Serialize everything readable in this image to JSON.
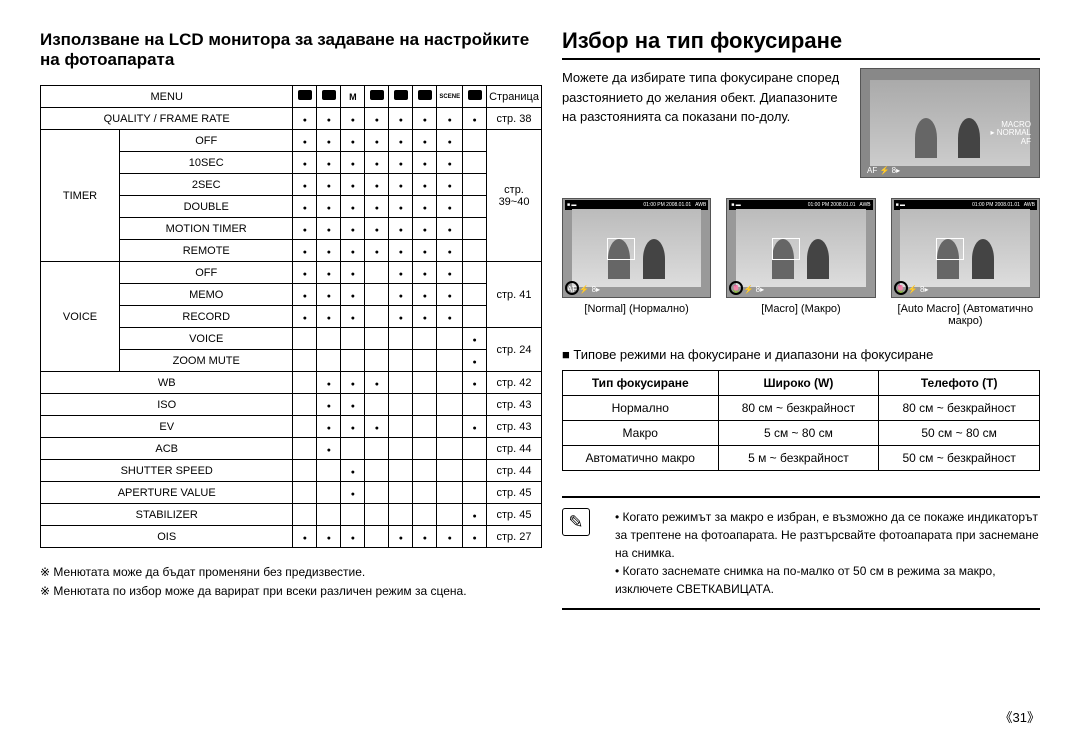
{
  "left": {
    "heading": "Използване на LCD монитора за задаване на настройките на фотоапарата",
    "table": {
      "header": [
        "MENU",
        "",
        "",
        "",
        "",
        "",
        "",
        "",
        "",
        "Страница"
      ],
      "mode_icons": [
        "◉",
        "◉",
        "M",
        "🎥",
        "◐",
        "☻",
        "SCENE",
        "☻"
      ],
      "rows": [
        {
          "group": "",
          "label": "QUALITY / FRAME RATE",
          "dots": [
            1,
            1,
            1,
            1,
            1,
            1,
            1,
            1
          ],
          "page": "стр. 38"
        },
        {
          "group": "TIMER",
          "label": "OFF",
          "dots": [
            1,
            1,
            1,
            1,
            1,
            1,
            1,
            0
          ],
          "page": ""
        },
        {
          "group": "TIMER",
          "label": "10SEC",
          "dots": [
            1,
            1,
            1,
            1,
            1,
            1,
            1,
            0
          ],
          "page": ""
        },
        {
          "group": "TIMER",
          "label": "2SEC",
          "dots": [
            1,
            1,
            1,
            1,
            1,
            1,
            1,
            0
          ],
          "page": "стр. 39~40"
        },
        {
          "group": "TIMER",
          "label": "DOUBLE",
          "dots": [
            1,
            1,
            1,
            1,
            1,
            1,
            1,
            0
          ],
          "page": ""
        },
        {
          "group": "TIMER",
          "label": "MOTION TIMER",
          "dots": [
            1,
            1,
            1,
            1,
            1,
            1,
            1,
            0
          ],
          "page": ""
        },
        {
          "group": "TIMER",
          "label": "REMOTE",
          "dots": [
            1,
            1,
            1,
            1,
            1,
            1,
            1,
            0
          ],
          "page": ""
        },
        {
          "group": "VOICE",
          "label": "OFF",
          "dots": [
            1,
            1,
            1,
            0,
            1,
            1,
            1,
            0
          ],
          "page": ""
        },
        {
          "group": "VOICE",
          "label": "MEMO",
          "dots": [
            1,
            1,
            1,
            0,
            1,
            1,
            1,
            0
          ],
          "page": "стр. 41"
        },
        {
          "group": "VOICE",
          "label": "RECORD",
          "dots": [
            1,
            1,
            1,
            0,
            1,
            1,
            1,
            0
          ],
          "page": ""
        },
        {
          "group": "VOICE",
          "label": "VOICE",
          "dots": [
            0,
            0,
            0,
            0,
            0,
            0,
            0,
            1
          ],
          "page": ""
        },
        {
          "group": "VOICE",
          "label": "ZOOM MUTE",
          "dots": [
            0,
            0,
            0,
            0,
            0,
            0,
            0,
            1
          ],
          "page": "стр. 24"
        },
        {
          "group": "",
          "label": "WB",
          "dots": [
            0,
            1,
            1,
            1,
            0,
            0,
            0,
            1
          ],
          "page": "стр. 42"
        },
        {
          "group": "",
          "label": "ISO",
          "dots": [
            0,
            1,
            1,
            0,
            0,
            0,
            0,
            0
          ],
          "page": "стр. 43"
        },
        {
          "group": "",
          "label": "EV",
          "dots": [
            0,
            1,
            1,
            1,
            0,
            0,
            0,
            1
          ],
          "page": "стр. 43"
        },
        {
          "group": "",
          "label": "ACB",
          "dots": [
            0,
            1,
            0,
            0,
            0,
            0,
            0,
            0
          ],
          "page": "стр. 44"
        },
        {
          "group": "",
          "label": "SHUTTER SPEED",
          "dots": [
            0,
            0,
            1,
            0,
            0,
            0,
            0,
            0
          ],
          "page": "стр. 44"
        },
        {
          "group": "",
          "label": "APERTURE VALUE",
          "dots": [
            0,
            0,
            1,
            0,
            0,
            0,
            0,
            0
          ],
          "page": "стр. 45"
        },
        {
          "group": "",
          "label": "STABILIZER",
          "dots": [
            0,
            0,
            0,
            0,
            0,
            0,
            0,
            1
          ],
          "page": "стр. 45"
        },
        {
          "group": "",
          "label": "OIS",
          "dots": [
            1,
            1,
            1,
            0,
            1,
            1,
            1,
            1
          ],
          "page": "стр. 27"
        }
      ]
    },
    "footnotes": [
      "Менютата може да бъдат променяни без предизвестие.",
      "Менютата по избор може да варират при всеки различен режим за сцена."
    ]
  },
  "right": {
    "heading": "Избор на тип фокусиране",
    "intro": "Можете да избирате типа фокусиране според разстоянието до желания обект. Диапазоните на разстоянията са показани по-долу.",
    "preview_labels": {
      "macro": "MACRO",
      "normal": "NORMAL",
      "af": "AF"
    },
    "thumbs": [
      {
        "label": "[Normal] (Нормално)"
      },
      {
        "label": "[Macro] (Макро)"
      },
      {
        "label": "[Auto Macro] (Автоматично макро)"
      }
    ],
    "section_title": "Типове режими на фокусиране и диапазони на фокусиране",
    "focus_table": {
      "header": [
        "Тип фокусиране",
        "Широко (W)",
        "Телефото (T)"
      ],
      "rows": [
        [
          "Нормално",
          "80 см ~ безкрайност",
          "80 см ~ безкрайност"
        ],
        [
          "Макро",
          "5 см ~ 80 см",
          "50 см ~ 80 см"
        ],
        [
          "Автоматично макро",
          "5 м ~ безкрайност",
          "50 см ~ безкрайност"
        ]
      ]
    },
    "notes": [
      "Когато режимът за макро е избран, е възможно да се покаже индикаторът за трептене на фотоапарата. Не разтърсвайте фотоапарата при заснемане на снимка.",
      "Когато заснемате снимка на по-малко от 50 см в режима за макро, изключете СВЕТКАВИЦАТА."
    ]
  },
  "page_number": "《31》"
}
